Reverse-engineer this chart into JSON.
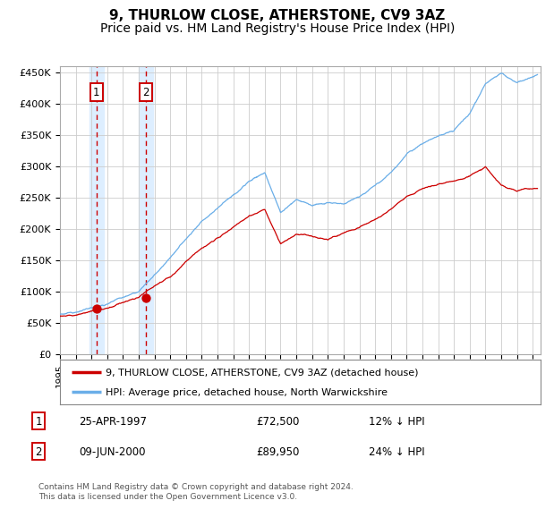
{
  "title": "9, THURLOW CLOSE, ATHERSTONE, CV9 3AZ",
  "subtitle": "Price paid vs. HM Land Registry's House Price Index (HPI)",
  "ylim": [
    0,
    460000
  ],
  "yticks": [
    0,
    50000,
    100000,
    150000,
    200000,
    250000,
    300000,
    350000,
    400000,
    450000
  ],
  "ytick_labels": [
    "£0",
    "£50K",
    "£100K",
    "£150K",
    "£200K",
    "£250K",
    "£300K",
    "£350K",
    "£400K",
    "£450K"
  ],
  "xlim_start": 1995.0,
  "xlim_end": 2025.5,
  "sale1_date": 1997.32,
  "sale1_price": 72500,
  "sale2_date": 2000.44,
  "sale2_price": 89950,
  "hpi_color": "#6aaee8",
  "price_color": "#cc0000",
  "shade_color": "#ddeeff",
  "grid_color": "#cccccc",
  "background_color": "#ffffff",
  "legend_label_red": "9, THURLOW CLOSE, ATHERSTONE, CV9 3AZ (detached house)",
  "legend_label_blue": "HPI: Average price, detached house, North Warwickshire",
  "footer": "Contains HM Land Registry data © Crown copyright and database right 2024.\nThis data is licensed under the Open Government Licence v3.0.",
  "title_fontsize": 11,
  "subtitle_fontsize": 10
}
